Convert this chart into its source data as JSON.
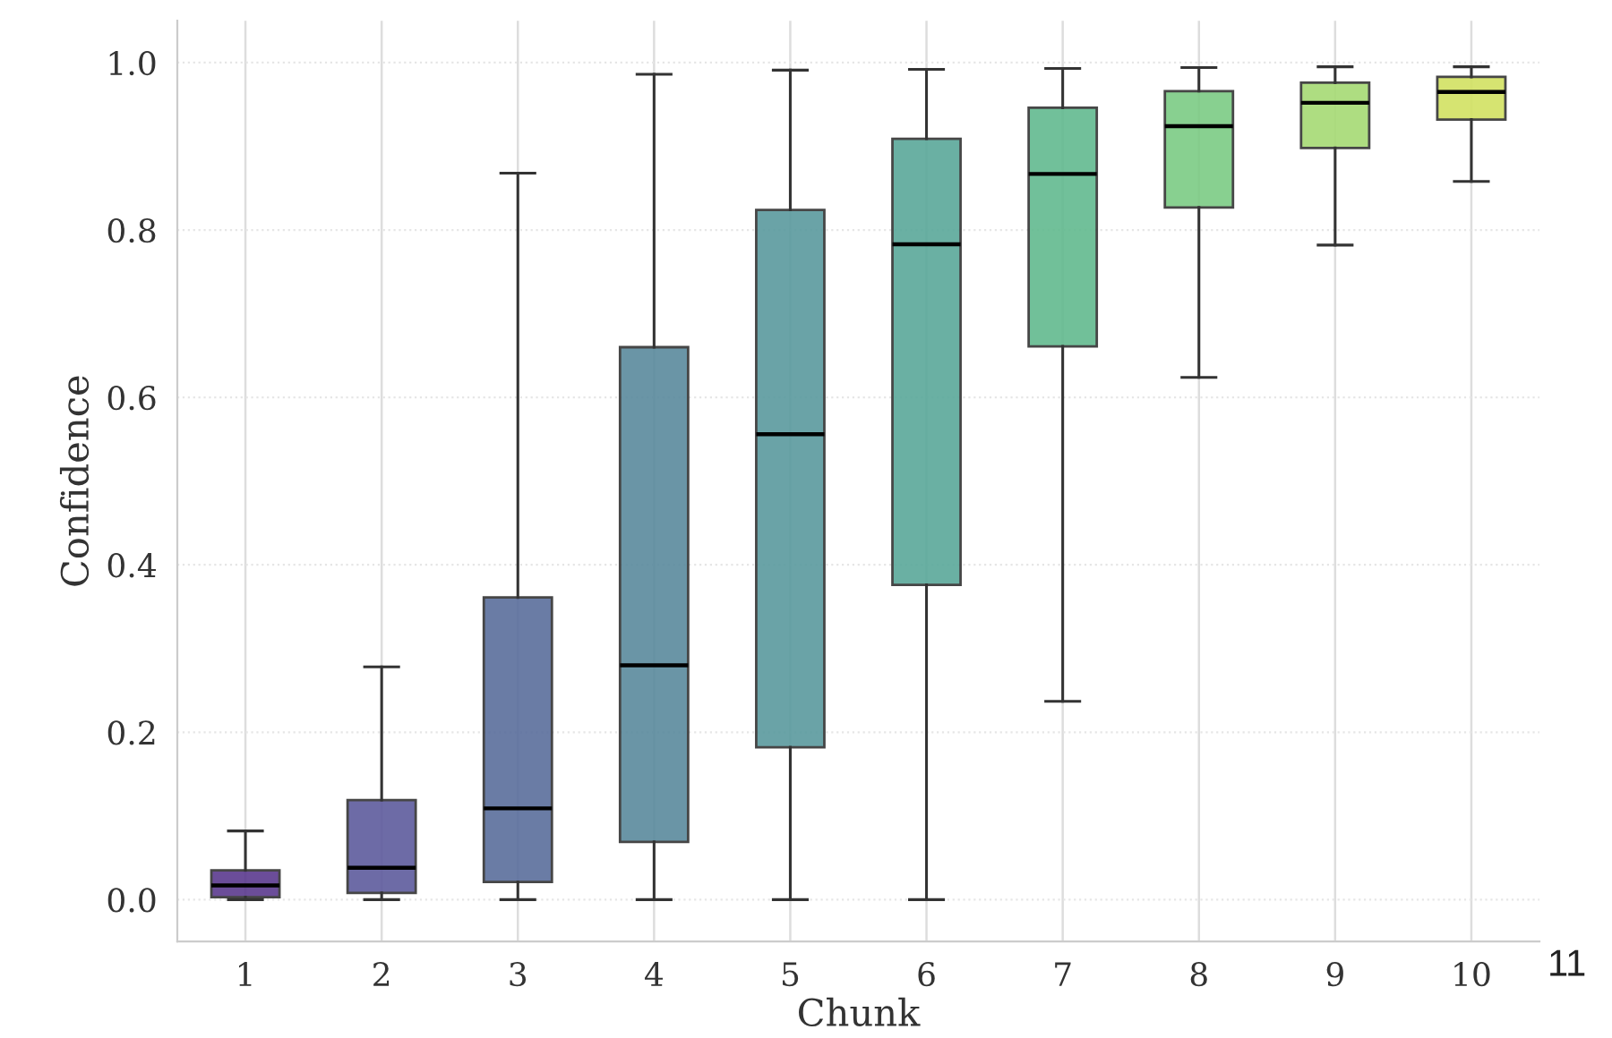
{
  "chart_data": {
    "type": "box",
    "xlabel": "Chunk",
    "ylabel": "Confidence",
    "categories": [
      "1",
      "2",
      "3",
      "4",
      "5",
      "6",
      "7",
      "8",
      "9",
      "10"
    ],
    "boxes": [
      {
        "low": 0.0,
        "q1": 0.003,
        "median": 0.017,
        "q3": 0.035,
        "high": 0.082
      },
      {
        "low": 0.0,
        "q1": 0.008,
        "median": 0.038,
        "q3": 0.119,
        "high": 0.278
      },
      {
        "low": 0.0,
        "q1": 0.021,
        "median": 0.109,
        "q3": 0.361,
        "high": 0.868
      },
      {
        "low": 0.0,
        "q1": 0.069,
        "median": 0.28,
        "q3": 0.66,
        "high": 0.986
      },
      {
        "low": 0.0,
        "q1": 0.182,
        "median": 0.556,
        "q3": 0.824,
        "high": 0.991
      },
      {
        "low": 0.0,
        "q1": 0.376,
        "median": 0.783,
        "q3": 0.909,
        "high": 0.992
      },
      {
        "low": 0.237,
        "q1": 0.661,
        "median": 0.867,
        "q3": 0.946,
        "high": 0.993
      },
      {
        "low": 0.624,
        "q1": 0.827,
        "median": 0.924,
        "q3": 0.966,
        "high": 0.994
      },
      {
        "low": 0.782,
        "q1": 0.898,
        "median": 0.952,
        "q3": 0.976,
        "high": 0.995
      },
      {
        "low": 0.858,
        "q1": 0.932,
        "median": 0.965,
        "q3": 0.983,
        "high": 0.995
      }
    ],
    "colors": [
      "#5b3a8e",
      "#5e5b9d",
      "#5a6e9c",
      "#5a8a9d",
      "#5a9a9e",
      "#5aa89a",
      "#62ba8f",
      "#7ccb84",
      "#a6da74",
      "#d2e262"
    ],
    "ylim": [
      -0.05,
      1.05
    ],
    "yticks": [
      {
        "value": 0,
        "label": "0.0"
      },
      {
        "value": 0.2,
        "label": "0.2"
      },
      {
        "value": 0.4,
        "label": "0.4"
      },
      {
        "value": 0.6,
        "label": "0.6"
      },
      {
        "value": 0.8,
        "label": "0.8"
      },
      {
        "value": 1,
        "label": "1.0"
      }
    ],
    "grid": true,
    "legend": false,
    "annotations": [
      "11"
    ]
  }
}
